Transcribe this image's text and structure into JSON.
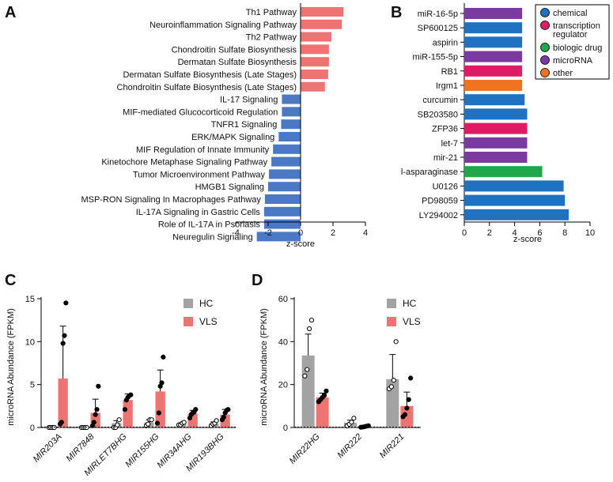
{
  "panels": {
    "A": "A",
    "B": "B",
    "C": "C",
    "D": "D"
  },
  "colors": {
    "positive": "#ee7373",
    "negative": "#4a78c4",
    "hc": "#a3a3a3",
    "vls": "#ee7373",
    "chemical": "#1f72c0",
    "transcription_regulator": "#dc1c64",
    "biologic_drug": "#1fa64a",
    "microRNA": "#7a3aa0",
    "other": "#ef7320"
  },
  "chart_data": [
    {
      "panel": "A",
      "type": "bar",
      "orientation": "horizontal",
      "xlabel": "z-score",
      "xlim": [
        -4,
        4
      ],
      "xticks": [
        -4,
        -2,
        0,
        2,
        4
      ],
      "categories": [
        "Th1 Pathway",
        "Neuroinflammation Signaling Pathway",
        "Th2 Pathway",
        "Chondroitin Sulfate Biosynthesis",
        "Dermatan Sulfate Biosynthesis",
        "Dermatan Sulfate Biosynthesis (Late Stages)",
        "Chondroitin Sulfate Biosynthesis (Late Stages)",
        "IL-17 Signaling",
        "MIF-mediated Glucocorticoid Regulation",
        "TNFR1 Signaling",
        "ERK/MAPK Signaling",
        "MIF Regulation of Innate Immunity",
        "Kinetochore Metaphase Signaling Pathway",
        "Tumor Microenvironment Pathway",
        "HMGB1 Signaling",
        "MSP-RON Signaling In Macrophages Pathway",
        "IL-17A Signaling in Gastric Cells",
        "Role of IL-17A in Psoriasis",
        "Neuregulin Signaling"
      ],
      "values": [
        2.65,
        2.55,
        1.9,
        1.75,
        1.75,
        1.7,
        1.5,
        -1.15,
        -1.15,
        -1.2,
        -1.35,
        -1.7,
        -1.8,
        -1.95,
        -2.0,
        -2.2,
        -2.25,
        -2.25,
        -2.7
      ]
    },
    {
      "panel": "B",
      "type": "bar",
      "orientation": "horizontal",
      "xlabel": "z-score",
      "xlim": [
        0,
        10
      ],
      "xticks": [
        0,
        2,
        4,
        6,
        8,
        10
      ],
      "categories": [
        "miR-16-5p",
        "SP600125",
        "aspirin",
        "miR-155-5p",
        "RB1",
        "Irgm1",
        "curcumin",
        "SB203580",
        "ZFP36",
        "let-7",
        "mir-21",
        "l-asparaginase",
        "U0126",
        "PD98059",
        "LY294002"
      ],
      "values": [
        4.6,
        4.6,
        4.6,
        4.6,
        4.6,
        4.6,
        4.8,
        5.0,
        5.0,
        5.0,
        5.0,
        6.2,
        7.9,
        8.0,
        8.3
      ],
      "classes": [
        "microRNA",
        "chemical",
        "chemical",
        "microRNA",
        "transcription_regulator",
        "other",
        "chemical",
        "chemical",
        "transcription_regulator",
        "microRNA",
        "microRNA",
        "biologic_drug",
        "chemical",
        "chemical",
        "chemical"
      ],
      "legend": [
        {
          "key": "chemical",
          "lines": [
            "chemical"
          ]
        },
        {
          "key": "transcription_regulator",
          "lines": [
            "transcription",
            "regulator"
          ]
        },
        {
          "key": "biologic_drug",
          "lines": [
            "biologic drug"
          ]
        },
        {
          "key": "microRNA",
          "lines": [
            "microRNA"
          ]
        },
        {
          "key": "other",
          "lines": [
            "other"
          ]
        }
      ]
    },
    {
      "panel": "C",
      "type": "bar",
      "grouped": true,
      "ylabel": "microRNA Abundance (FPKM)",
      "ylim": [
        0,
        15
      ],
      "yticks": [
        0,
        5,
        10,
        15
      ],
      "categories": [
        "MIR203A",
        "MIR7848",
        "MIRLET7BHG",
        "MIR155HG",
        "MIR34AHG",
        "MIR193BHG"
      ],
      "legend": [
        "HC",
        "VLS"
      ],
      "series": [
        {
          "name": "HC",
          "values": [
            0,
            0,
            0.5,
            0.6,
            0.4,
            0.45
          ],
          "errors": [
            0,
            0,
            0.3,
            0.3,
            0.15,
            0.2
          ],
          "points": [
            [
              0,
              0,
              0,
              0
            ],
            [
              0,
              0,
              0,
              0
            ],
            [
              0,
              0,
              0.3,
              0.9
            ],
            [
              0.2,
              0.4,
              0.9,
              0.9
            ],
            [
              0.3,
              0.3,
              0.5,
              0.6
            ],
            [
              0.2,
              0.4,
              0.5,
              0.8
            ]
          ]
        },
        {
          "name": "VLS",
          "values": [
            5.7,
            1.7,
            3.2,
            4.2,
            1.6,
            1.5
          ],
          "errors": [
            6.1,
            1.6,
            0.7,
            2.5,
            0.4,
            0.6
          ],
          "points": [
            [
              0.4,
              0.6,
              9.8,
              10.7,
              14.5
            ],
            [
              0.2,
              0.6,
              1.5,
              2.1,
              4.8
            ],
            [
              2.1,
              3.2,
              3.5,
              3.7,
              3.8
            ],
            [
              0.5,
              1.7,
              4.8,
              5.2,
              8.2
            ],
            [
              1.1,
              1.5,
              1.7,
              1.8,
              2.1
            ],
            [
              0.9,
              1.2,
              1.7,
              2.0,
              2.1
            ]
          ]
        }
      ]
    },
    {
      "panel": "D",
      "type": "bar",
      "grouped": true,
      "ylabel": "microRNA Abundance (FPKM)",
      "ylim": [
        0,
        60
      ],
      "yticks": [
        0,
        20,
        40,
        60
      ],
      "categories": [
        "MIR22HG",
        "MIR222",
        "MIR221"
      ],
      "legend": [
        "HC",
        "VLS"
      ],
      "series": [
        {
          "name": "HC",
          "values": [
            33.5,
            2.2,
            22.5
          ],
          "errors": [
            10,
            1.2,
            11.5
          ],
          "points": [
            [
              24,
              27,
              46,
              50
            ],
            [
              0.7,
              1.5,
              2.5,
              4.3
            ],
            [
              18,
              19,
              22,
              40
            ]
          ]
        },
        {
          "name": "VLS",
          "values": [
            14,
            0.4,
            10
          ],
          "errors": [
            2,
            0.3,
            6.5
          ],
          "points": [
            [
              12,
              13,
              14,
              15,
              17
            ],
            [
              0.1,
              0.2,
              0.4,
              0.6,
              0.8
            ],
            [
              5,
              6,
              9,
              13,
              23
            ]
          ]
        }
      ]
    }
  ]
}
